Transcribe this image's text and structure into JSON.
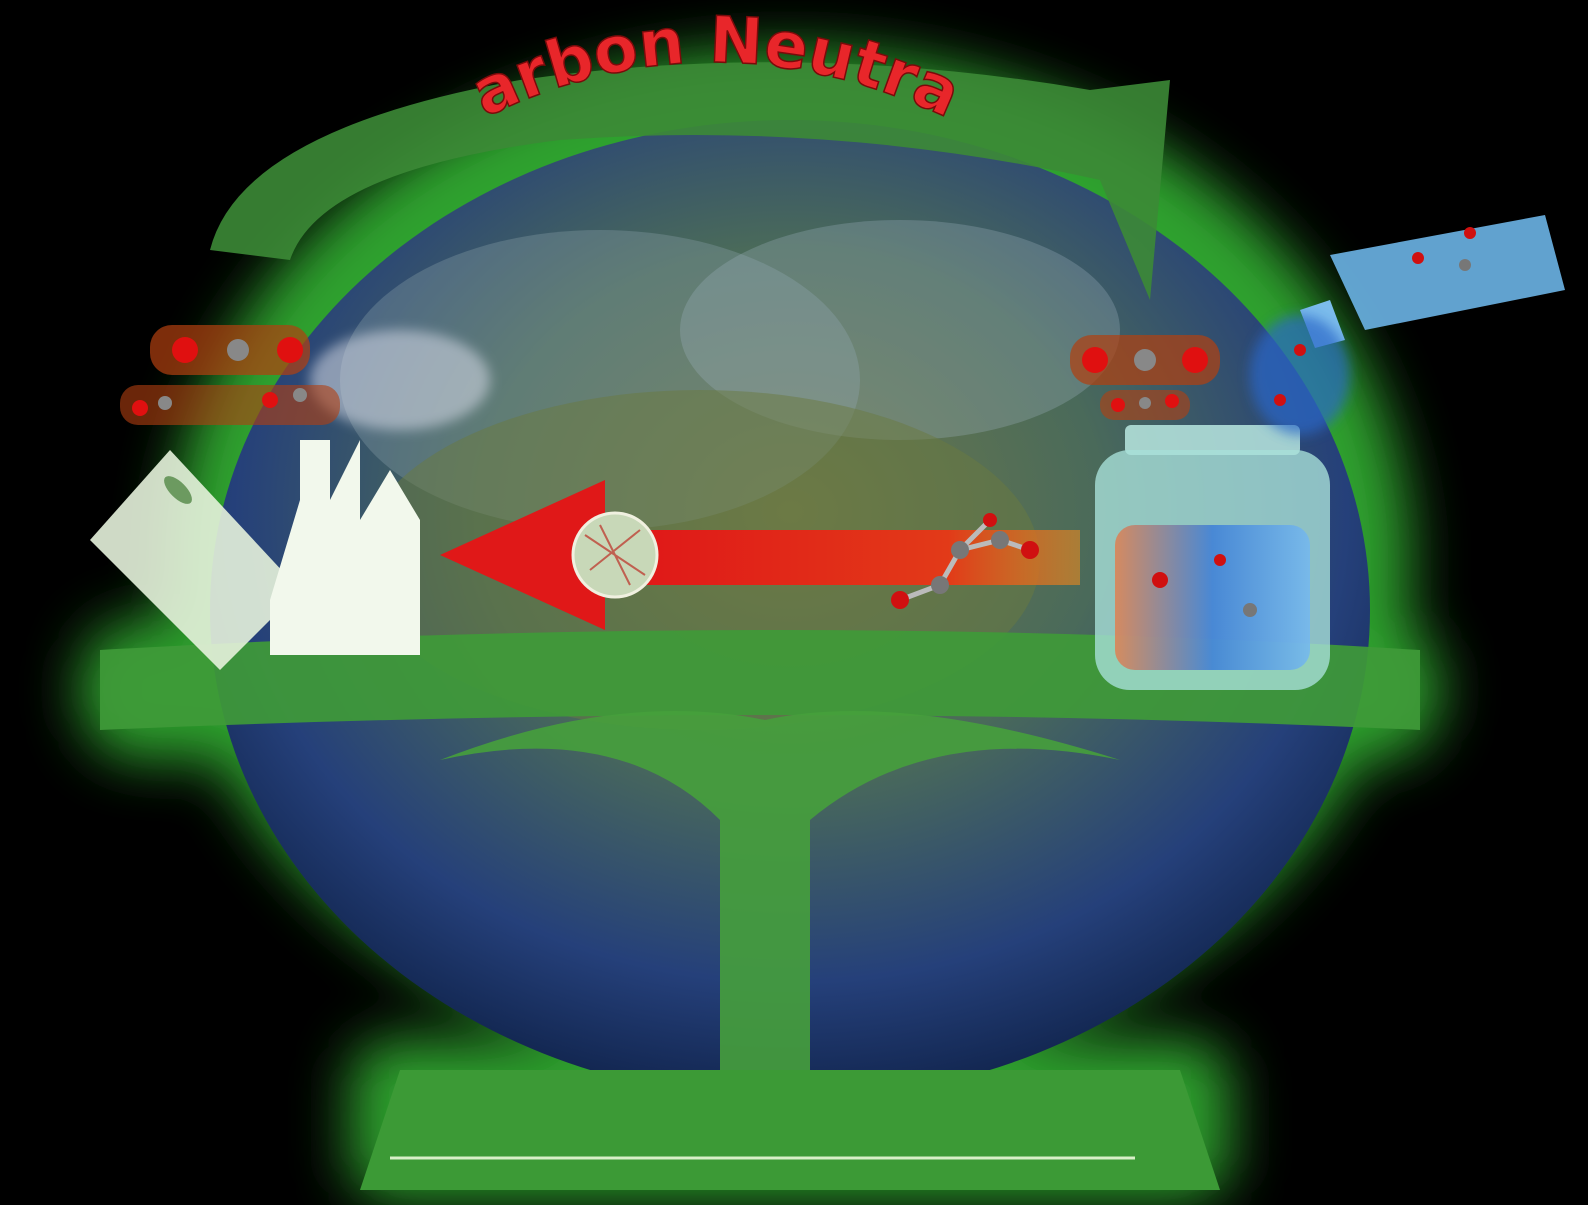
{
  "title": "Carbon Neutral"
}
